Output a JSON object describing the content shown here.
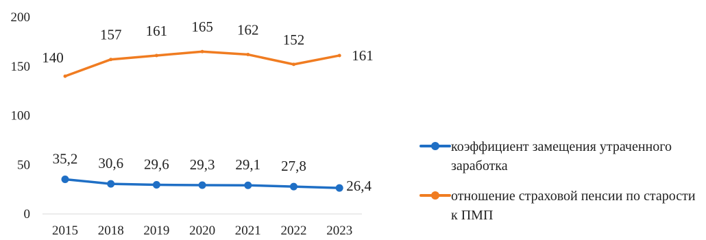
{
  "chart_data": {
    "type": "line",
    "categories": [
      "2015",
      "2018",
      "2019",
      "2020",
      "2021",
      "2022",
      "2023"
    ],
    "ylim": [
      0,
      200
    ],
    "y_ticks": [
      "0",
      "50",
      "100",
      "150",
      "200"
    ],
    "grid": false,
    "legend_position": "right",
    "series": [
      {
        "name": "коэффициент замещения утраченного заработка",
        "values": [
          35.2,
          30.6,
          29.6,
          29.3,
          29.1,
          27.8,
          26.4
        ],
        "labels": [
          "35,2",
          "30,6",
          "29,6",
          "29,3",
          "29,1",
          "27,8",
          "26,4"
        ],
        "color": "#1f6fc5"
      },
      {
        "name": "отношение страховой пенсии по старости к ПМП",
        "values": [
          140,
          157,
          161,
          165,
          162,
          152,
          161
        ],
        "labels": [
          "140",
          "157",
          "161",
          "165",
          "162",
          "152",
          "161"
        ],
        "color": "#f07c21"
      }
    ]
  }
}
